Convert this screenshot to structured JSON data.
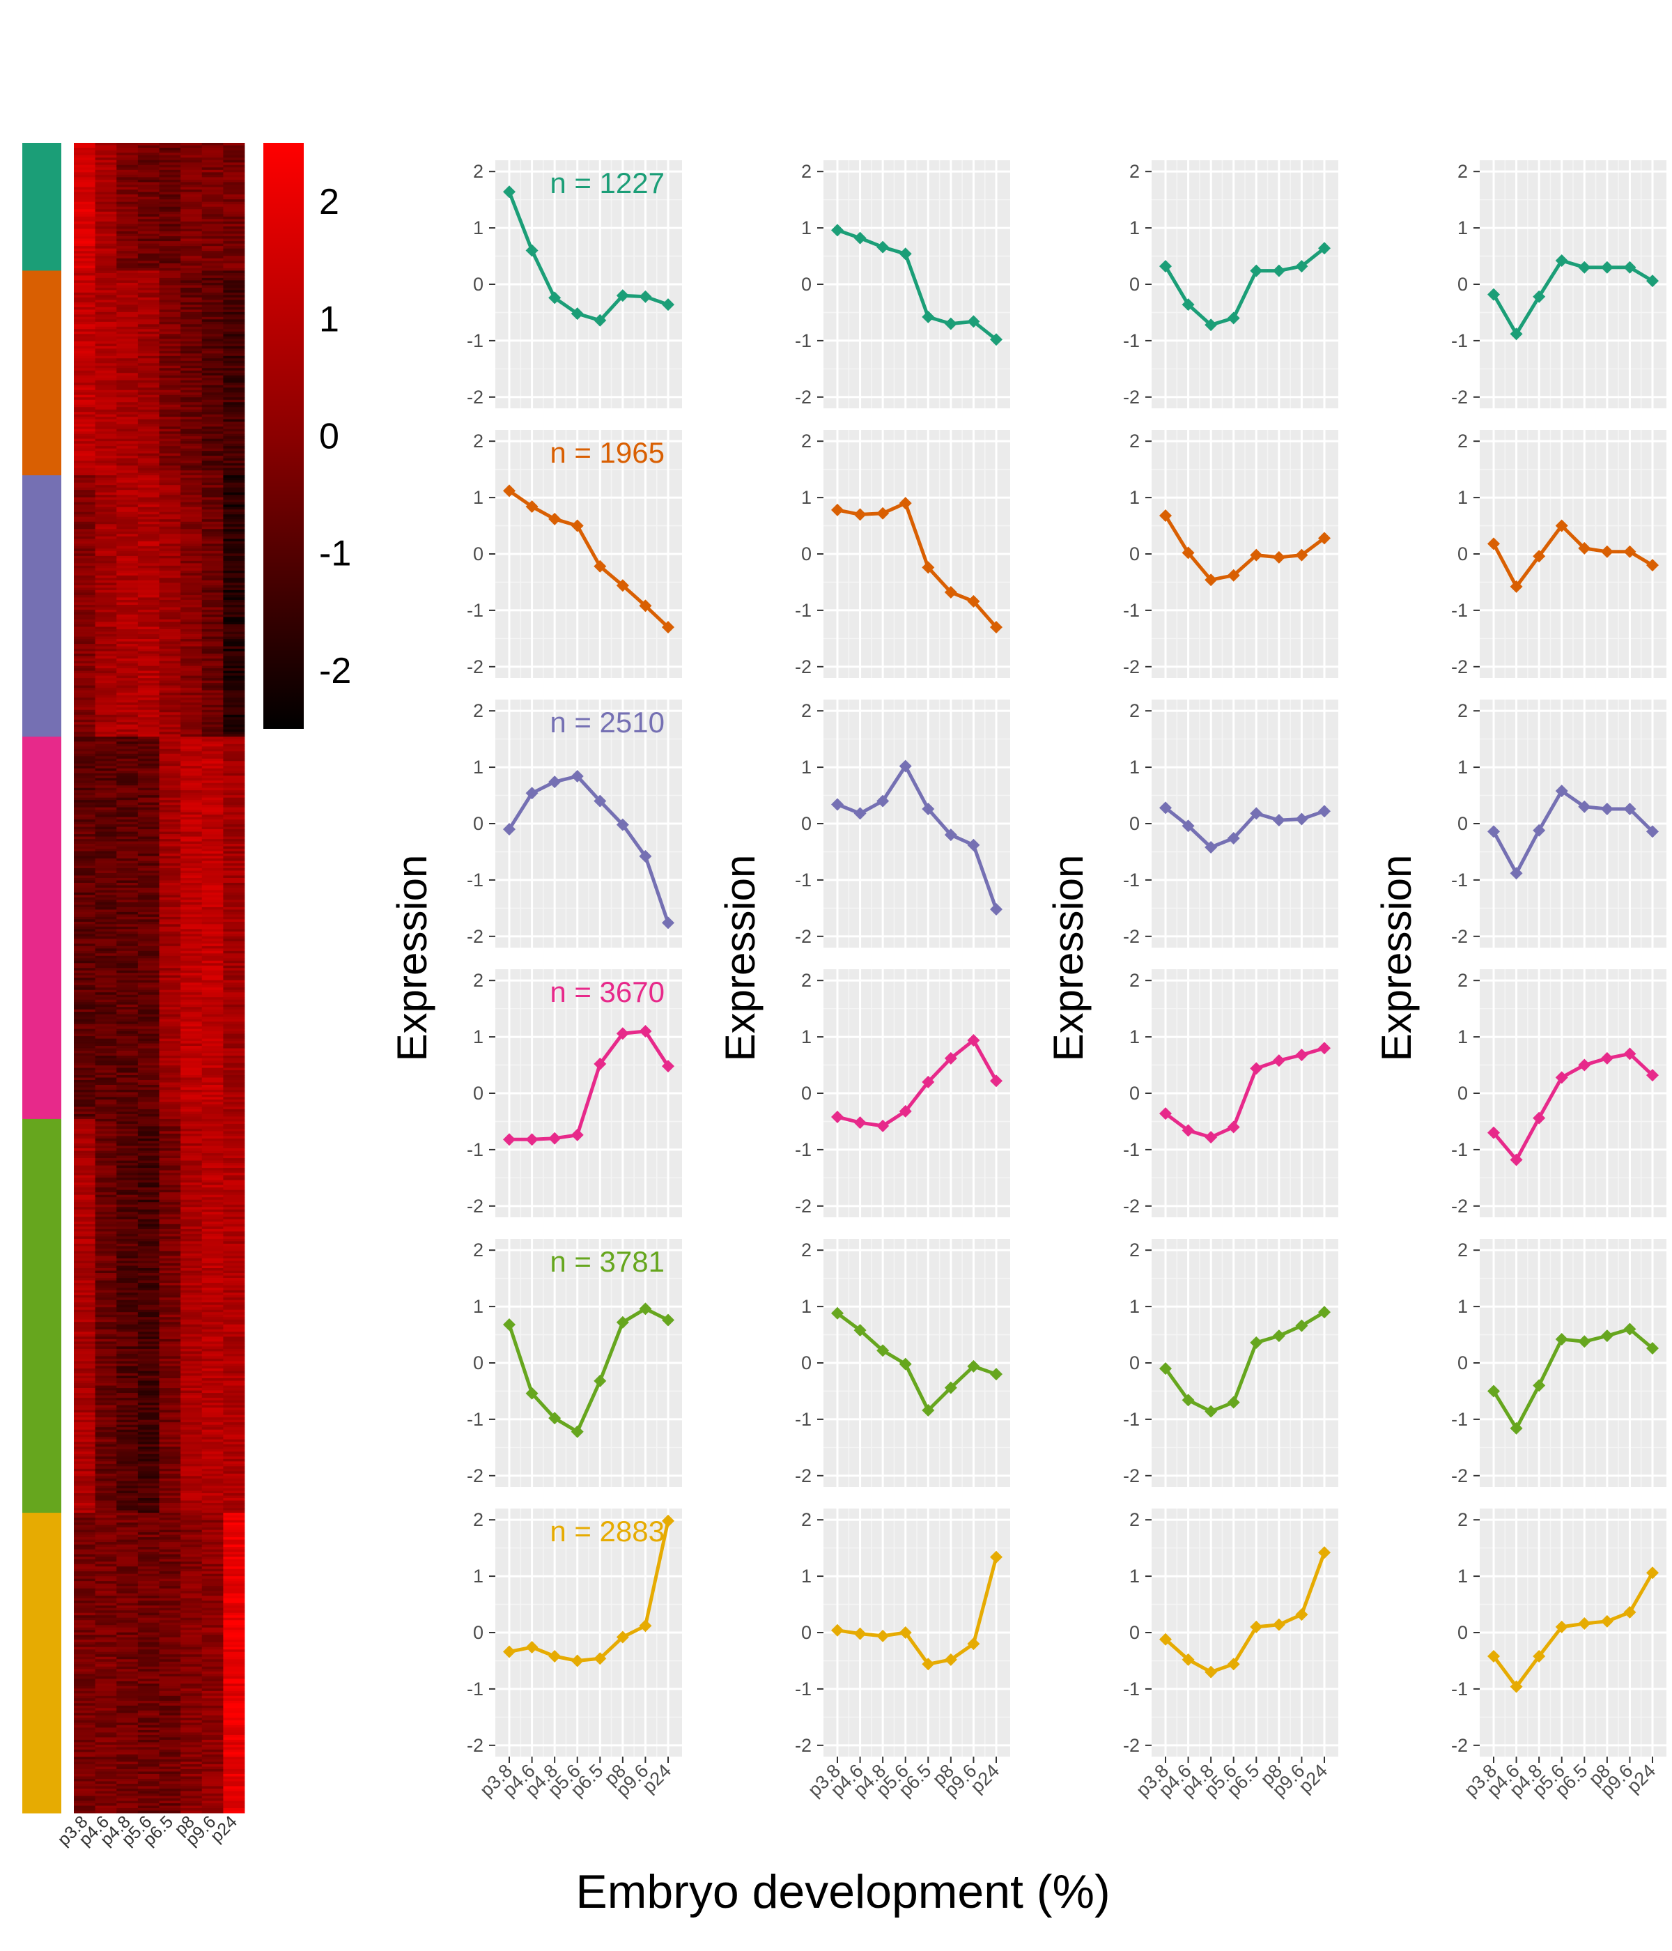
{
  "figure": {
    "xlabel": "Embryo development (%)",
    "ylabel": "Expression"
  },
  "chart_data": [
    {
      "type": "heatmap",
      "columns": [
        "p3.8",
        "p4.6",
        "p4.8",
        "p5.6",
        "p6.5",
        "p8",
        "p9.6",
        "p24"
      ],
      "colorbar": {
        "ticks": [
          2,
          1,
          0,
          -1,
          -2
        ],
        "range": [
          -2.5,
          2.5
        ],
        "low_color": "#000000",
        "mid_color": "#8b0000",
        "high_color": "#ff0000"
      },
      "clusters": [
        {
          "color": "#1b9e77",
          "n": 1227,
          "profile": [
            1.64,
            0.6,
            -0.24,
            -0.52,
            -0.64,
            -0.2,
            -0.22,
            -0.36
          ]
        },
        {
          "color": "#d95f02",
          "n": 1965,
          "profile": [
            1.12,
            0.84,
            0.62,
            0.5,
            -0.22,
            -0.56,
            -0.92,
            -1.3
          ]
        },
        {
          "color": "#7570b3",
          "n": 2510,
          "profile": [
            -0.1,
            0.54,
            0.74,
            0.84,
            0.4,
            -0.02,
            -0.58,
            -1.76
          ]
        },
        {
          "color": "#e7298a",
          "n": 3670,
          "profile": [
            -0.82,
            -0.82,
            -0.8,
            -0.74,
            0.52,
            1.06,
            1.1,
            0.48
          ]
        },
        {
          "color": "#66a61e",
          "n": 3781,
          "profile": [
            0.68,
            -0.54,
            -0.98,
            -1.22,
            -0.32,
            0.72,
            0.96,
            0.76
          ]
        },
        {
          "color": "#e6ab02",
          "n": 2883,
          "profile": [
            -0.34,
            -0.26,
            -0.42,
            -0.5,
            -0.46,
            -0.08,
            0.12,
            1.98
          ]
        }
      ]
    },
    {
      "type": "line",
      "layout": "small multiples: 6 rows (clusters) × 4 columns",
      "x": [
        "p3.8",
        "p4.6",
        "p4.8",
        "p5.6",
        "p6.5",
        "p8",
        "p9.6",
        "p24"
      ],
      "yticks": [
        2,
        1,
        0,
        -1,
        -2
      ],
      "ylim": [
        -2.2,
        2.2
      ],
      "grid": true,
      "panel_background": "#ebebeb",
      "rows": [
        {
          "color": "#1b9e77",
          "label": "n = 1227",
          "series": [
            [
              1.64,
              0.6,
              -0.24,
              -0.52,
              -0.64,
              -0.2,
              -0.22,
              -0.36
            ],
            [
              0.96,
              0.82,
              0.66,
              0.54,
              -0.58,
              -0.7,
              -0.66,
              -0.98
            ],
            [
              0.32,
              -0.36,
              -0.72,
              -0.6,
              0.24,
              0.24,
              0.32,
              0.64
            ],
            [
              -0.18,
              -0.88,
              -0.22,
              0.42,
              0.3,
              0.3,
              0.3,
              0.06
            ]
          ]
        },
        {
          "color": "#d95f02",
          "label": "n = 1965",
          "series": [
            [
              1.12,
              0.84,
              0.62,
              0.5,
              -0.22,
              -0.56,
              -0.92,
              -1.3
            ],
            [
              0.78,
              0.7,
              0.72,
              0.9,
              -0.24,
              -0.68,
              -0.84,
              -1.3
            ],
            [
              0.68,
              0.02,
              -0.46,
              -0.38,
              -0.02,
              -0.06,
              -0.02,
              0.28
            ],
            [
              0.18,
              -0.58,
              -0.04,
              0.5,
              0.1,
              0.04,
              0.04,
              -0.2
            ]
          ]
        },
        {
          "color": "#7570b3",
          "label": "n = 2510",
          "series": [
            [
              -0.1,
              0.54,
              0.74,
              0.84,
              0.4,
              -0.02,
              -0.58,
              -1.76
            ],
            [
              0.34,
              0.18,
              0.4,
              1.02,
              0.26,
              -0.2,
              -0.38,
              -1.52
            ],
            [
              0.28,
              -0.04,
              -0.42,
              -0.26,
              0.18,
              0.06,
              0.08,
              0.22
            ],
            [
              -0.14,
              -0.88,
              -0.12,
              0.58,
              0.3,
              0.26,
              0.26,
              -0.14
            ]
          ]
        },
        {
          "color": "#e7298a",
          "label": "n = 3670",
          "series": [
            [
              -0.82,
              -0.82,
              -0.8,
              -0.74,
              0.52,
              1.06,
              1.1,
              0.48
            ],
            [
              -0.42,
              -0.52,
              -0.58,
              -0.32,
              0.2,
              0.62,
              0.94,
              0.22
            ],
            [
              -0.36,
              -0.66,
              -0.78,
              -0.6,
              0.44,
              0.58,
              0.68,
              0.8
            ],
            [
              -0.7,
              -1.18,
              -0.44,
              0.28,
              0.5,
              0.62,
              0.7,
              0.32
            ]
          ]
        },
        {
          "color": "#66a61e",
          "label": "n = 3781",
          "series": [
            [
              0.68,
              -0.54,
              -0.98,
              -1.22,
              -0.32,
              0.72,
              0.96,
              0.76
            ],
            [
              0.88,
              0.58,
              0.22,
              -0.02,
              -0.84,
              -0.44,
              -0.06,
              -0.2
            ],
            [
              -0.1,
              -0.66,
              -0.86,
              -0.7,
              0.36,
              0.48,
              0.66,
              0.9
            ],
            [
              -0.5,
              -1.16,
              -0.4,
              0.42,
              0.38,
              0.48,
              0.6,
              0.26
            ]
          ]
        },
        {
          "color": "#e6ab02",
          "label": "n = 2883",
          "series": [
            [
              -0.34,
              -0.26,
              -0.42,
              -0.5,
              -0.46,
              -0.08,
              0.12,
              1.98
            ],
            [
              0.04,
              -0.02,
              -0.06,
              0.0,
              -0.56,
              -0.48,
              -0.2,
              1.34
            ],
            [
              -0.12,
              -0.48,
              -0.7,
              -0.56,
              0.1,
              0.14,
              0.32,
              1.42
            ],
            [
              -0.42,
              -0.96,
              -0.42,
              0.1,
              0.16,
              0.2,
              0.36,
              1.06
            ]
          ]
        }
      ]
    }
  ]
}
